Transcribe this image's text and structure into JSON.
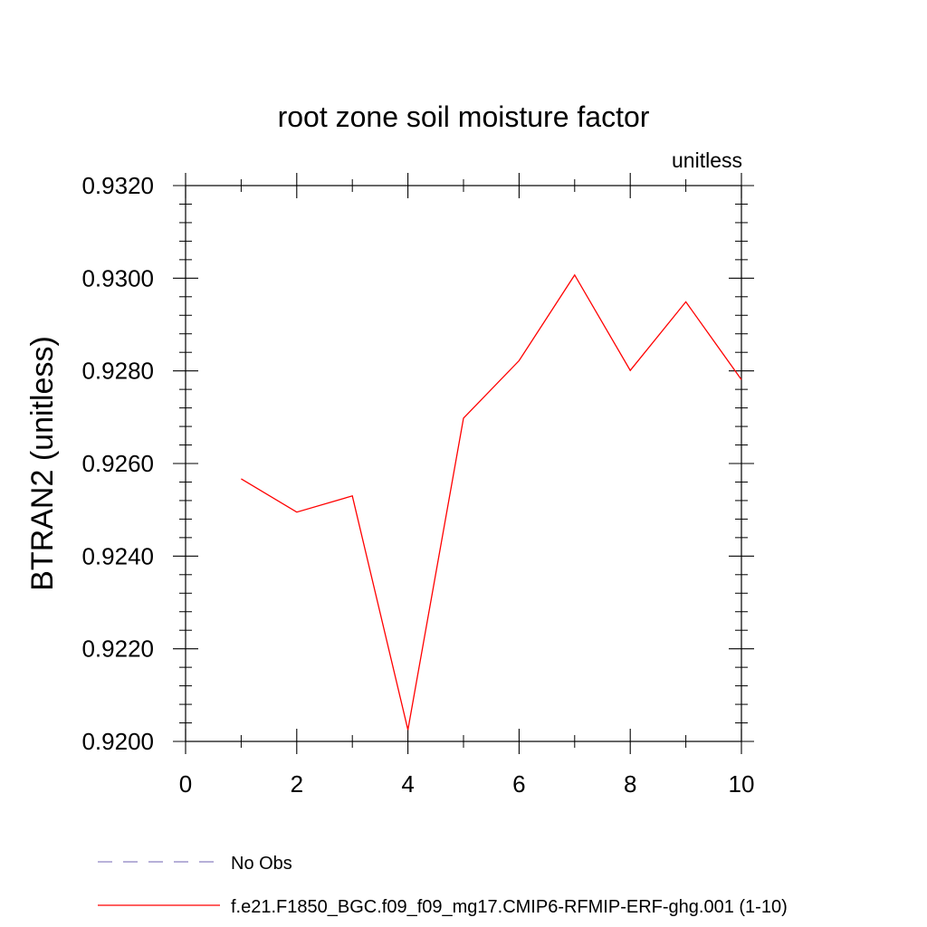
{
  "chart_data": {
    "type": "line",
    "title": "root zone soil moisture factor",
    "units_label": "unitless",
    "ylabel": "BTRAN2  (unitless)",
    "xlabel": "",
    "xlim": [
      0,
      10
    ],
    "ylim": [
      0.92,
      0.932
    ],
    "x_ticks": [
      0,
      2,
      4,
      6,
      8,
      10
    ],
    "x_tick_labels": [
      "0",
      "2",
      "4",
      "6",
      "8",
      "10"
    ],
    "y_ticks": [
      0.92,
      0.922,
      0.924,
      0.926,
      0.928,
      0.93,
      0.932
    ],
    "y_tick_labels": [
      "0.9200",
      "0.9220",
      "0.9240",
      "0.9260",
      "0.9280",
      "0.9300",
      "0.9320"
    ],
    "grid": false,
    "legend_position": "bottom-left",
    "series": [
      {
        "name": "f.e21.F1850_BGC.f09_f09_mg17.CMIP6-RFMIP-ERF-ghg.001 (1-10)",
        "color": "#ff0000",
        "x": [
          1,
          2,
          3,
          4,
          5,
          6,
          7,
          8,
          9,
          10
        ],
        "values": [
          0.92567,
          0.92495,
          0.9253,
          0.92025,
          0.92698,
          0.92822,
          0.93007,
          0.92801,
          0.92949,
          0.92781
        ]
      }
    ],
    "legend": [
      {
        "label": "No Obs",
        "style": "dashed",
        "color": "#8a80c0"
      },
      {
        "label": "f.e21.F1850_BGC.f09_f09_mg17.CMIP6-RFMIP-ERF-ghg.001 (1-10)",
        "style": "solid",
        "color": "#ff0000"
      }
    ]
  }
}
